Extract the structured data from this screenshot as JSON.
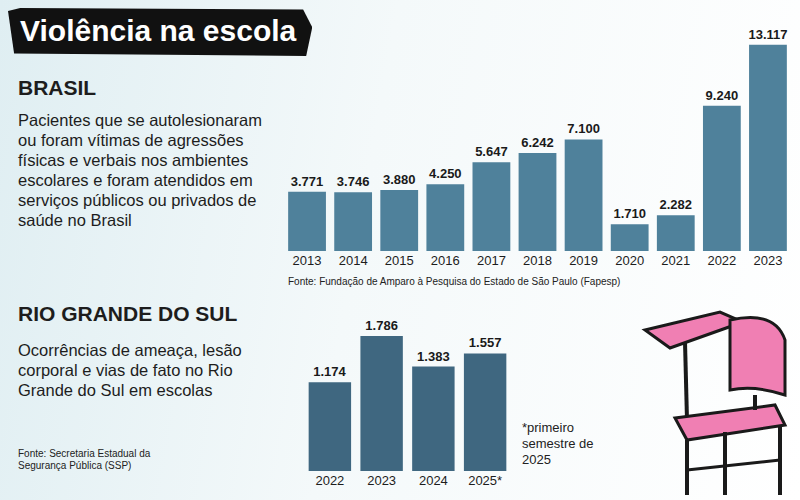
{
  "header": {
    "title": "Violência na escola"
  },
  "chart_data": [
    {
      "type": "bar",
      "title": "BRASIL",
      "subtitle": "Pacientes que se autolesionaram ou foram vítimas de agressões físicas e verbais nos ambientes escolares e foram atendidos em serviços públicos ou privados de saúde no Brasil",
      "annotations": [
        "Fonte: Fundação de Amparo à Pesquisa do Estado de São Paulo (Fapesp)"
      ],
      "categories": [
        "2013",
        "2014",
        "2015",
        "2016",
        "2017",
        "2018",
        "2019",
        "2020",
        "2021",
        "2022",
        "2023"
      ],
      "values": [
        3771,
        3746,
        3880,
        4250,
        5647,
        6242,
        7100,
        1710,
        2282,
        9240,
        13117
      ],
      "value_labels": [
        "3.771",
        "3.746",
        "3.880",
        "4.250",
        "5.647",
        "6.242",
        "7.100",
        "1.710",
        "2.282",
        "9.240",
        "13.117"
      ],
      "data_labels": true,
      "color": "#4f819b",
      "grid": false,
      "tick_labels": "x"
    },
    {
      "type": "bar",
      "title": "RIO GRANDE DO SUL",
      "subtitle": "Ocorrências de ameaça, lesão corporal e vias de fato no Rio Grande do Sul em escolas",
      "annotations": [
        "Fonte: Secretaria Estadual da Segurança Pública (SSP)",
        "*primeiro semestre de 2025"
      ],
      "categories": [
        "2022",
        "2023",
        "2024",
        "2025*"
      ],
      "values": [
        1174,
        1786,
        1383,
        1557
      ],
      "value_labels": [
        "1.174",
        "1.786",
        "1.383",
        "1.557"
      ],
      "data_labels": true,
      "color": "#3f6780",
      "grid": false,
      "tick_labels": "x"
    }
  ]
}
